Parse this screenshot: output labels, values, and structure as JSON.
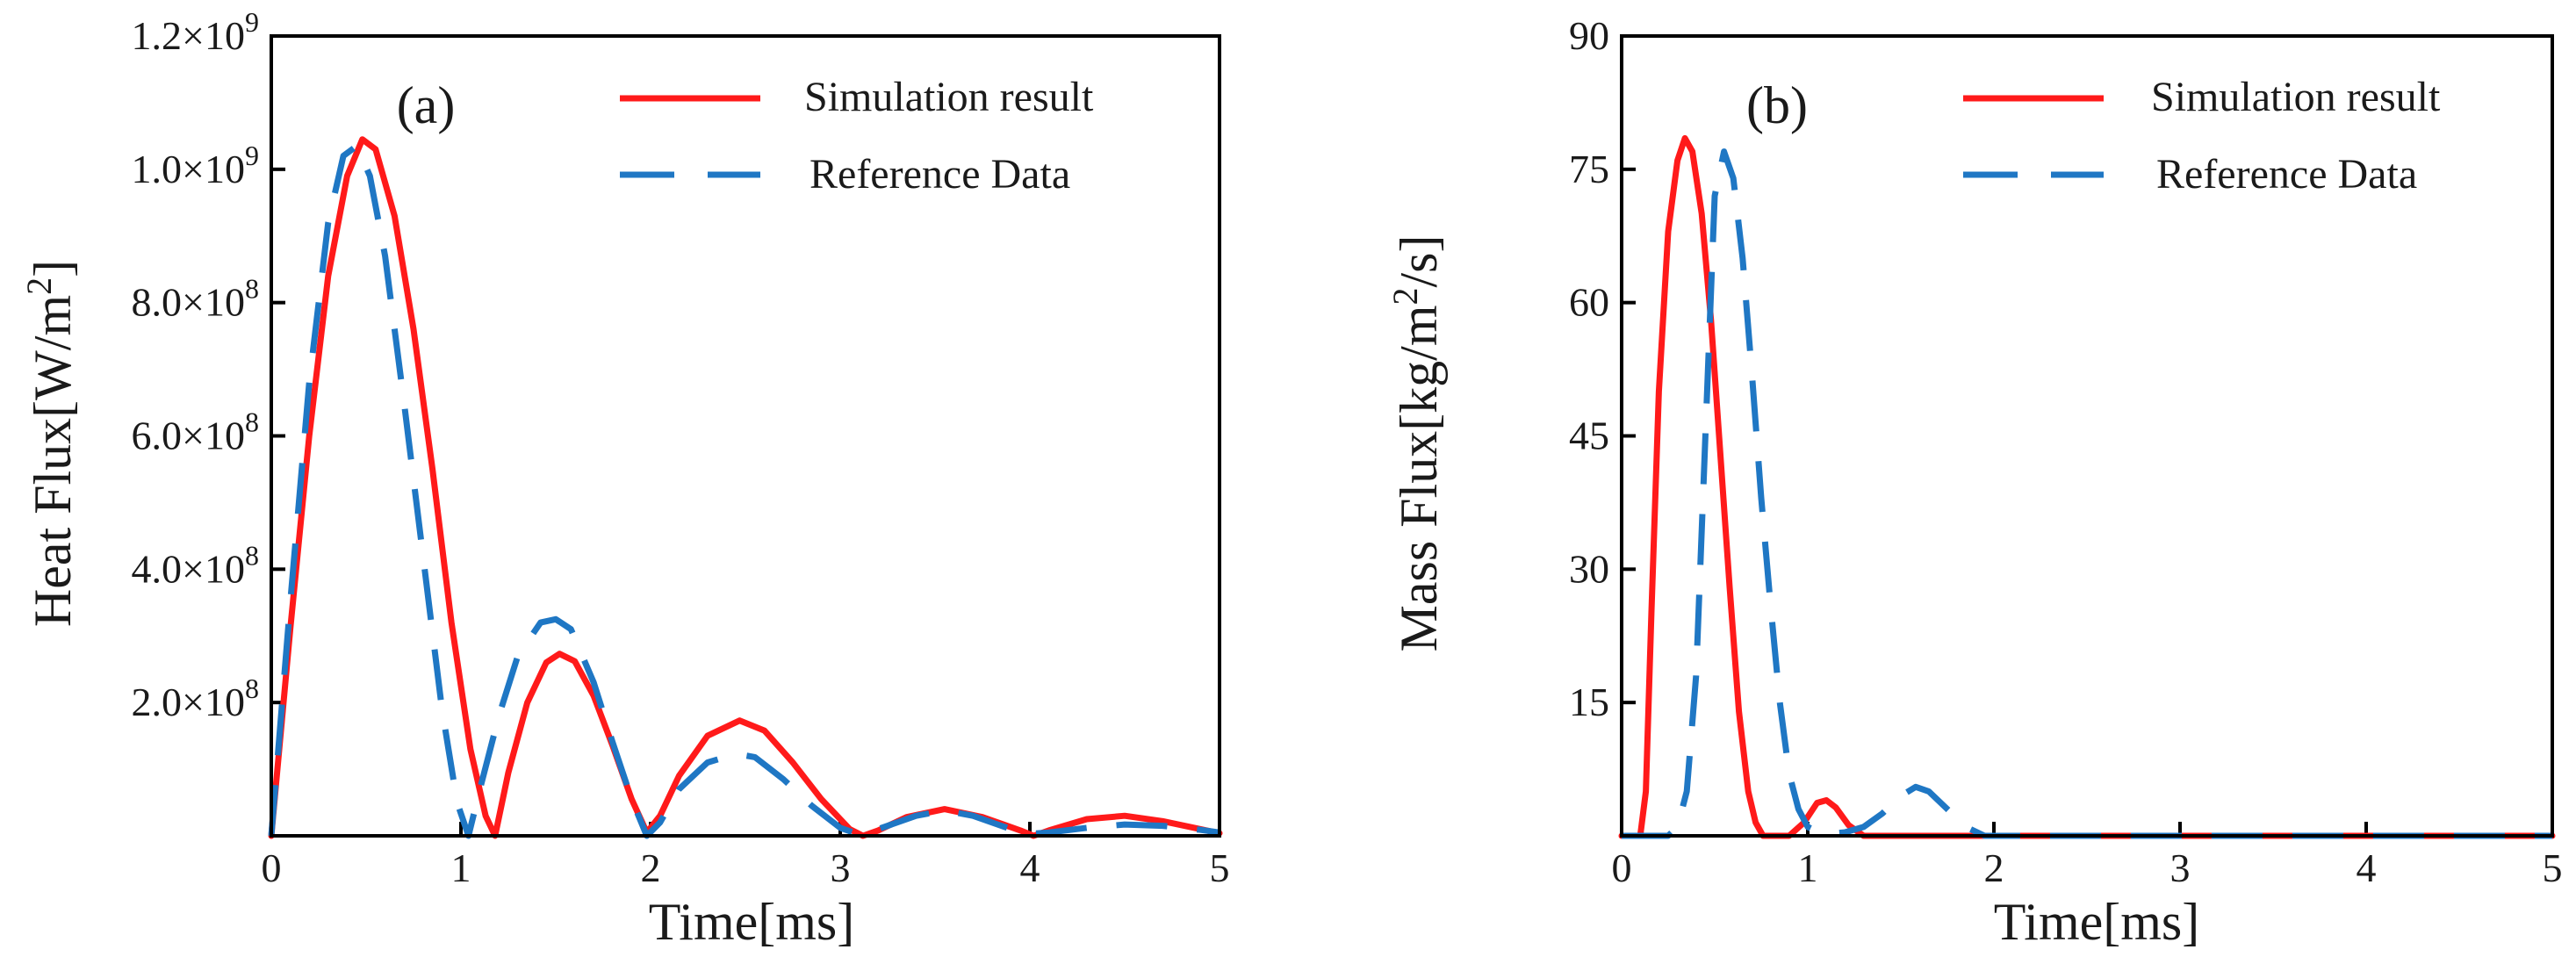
{
  "colors": {
    "simulation": "#ff1a1a",
    "reference": "#1f77c4",
    "axis": "#000000"
  },
  "chart_data": [
    {
      "type": "line",
      "panel_label": "(a)",
      "xlabel": "Time[ms]",
      "ylabel_main": "Heat Flux[W/m",
      "ylabel_sup": "2",
      "ylabel_end": "]",
      "xlim": [
        0,
        5
      ],
      "ylim": [
        0,
        1200000000
      ],
      "xticks": [
        {
          "label": "0",
          "value": 0
        },
        {
          "label": "1",
          "value": 1
        },
        {
          "label": "2",
          "value": 2
        },
        {
          "label": "3",
          "value": 3
        },
        {
          "label": "4",
          "value": 4
        },
        {
          "label": "5",
          "value": 5
        }
      ],
      "yticks": [
        {
          "base": "2.0×10",
          "exp": "8",
          "value": 200000000
        },
        {
          "base": "4.0×10",
          "exp": "8",
          "value": 400000000
        },
        {
          "base": "6.0×10",
          "exp": "8",
          "value": 600000000
        },
        {
          "base": "8.0×10",
          "exp": "8",
          "value": 800000000
        },
        {
          "base": "1.0×10",
          "exp": "9",
          "value": 1000000000
        },
        {
          "base": "1.2×10",
          "exp": "9",
          "value": 1200000000
        }
      ],
      "legend": {
        "position": "top-right",
        "entries": [
          {
            "label": "Simulation result",
            "style": "solid",
            "series": "simulation"
          },
          {
            "label": "Reference Data",
            "style": "dashed",
            "series": "reference"
          }
        ]
      },
      "series": [
        {
          "name": "Simulation result",
          "key": "simulation",
          "x": [
            0,
            0.1,
            0.2,
            0.3,
            0.4,
            0.48,
            0.55,
            0.65,
            0.75,
            0.85,
            0.95,
            1.05,
            1.13,
            1.18,
            1.25,
            1.35,
            1.45,
            1.52,
            1.6,
            1.7,
            1.8,
            1.9,
            1.98,
            2.05,
            2.15,
            2.3,
            2.47,
            2.6,
            2.75,
            2.9,
            3.05,
            3.12,
            3.2,
            3.35,
            3.55,
            3.75,
            3.95,
            4.02,
            4.1,
            4.3,
            4.5,
            4.7,
            4.9,
            5.0
          ],
          "y": [
            0,
            310000000,
            600000000,
            840000000,
            990000000,
            1045000000,
            1030000000,
            930000000,
            760000000,
            550000000,
            320000000,
            130000000,
            30000000,
            0,
            95000000,
            200000000,
            260000000,
            273000000,
            262000000,
            210000000,
            135000000,
            55000000,
            5000000,
            30000000,
            90000000,
            150000000,
            173000000,
            158000000,
            110000000,
            55000000,
            10000000,
            0,
            8000000,
            28000000,
            40000000,
            28000000,
            8000000,
            0,
            8000000,
            25000000,
            30000000,
            22000000,
            10000000,
            4000000
          ]
        },
        {
          "name": "Reference Data",
          "key": "reference",
          "x": [
            0,
            0.1,
            0.2,
            0.3,
            0.38,
            0.45,
            0.52,
            0.6,
            0.7,
            0.8,
            0.9,
            0.98,
            1.04,
            1.1,
            1.2,
            1.3,
            1.42,
            1.5,
            1.58,
            1.7,
            1.8,
            1.9,
            1.98,
            2.05,
            2.15,
            2.3,
            2.45,
            2.55,
            2.7,
            2.85,
            3.0,
            3.1,
            3.2,
            3.4,
            3.55,
            3.7,
            3.9,
            4.0,
            4.1,
            4.3,
            4.5,
            4.7,
            4.9,
            5.0
          ],
          "y": [
            0,
            350000000,
            680000000,
            920000000,
            1020000000,
            1035000000,
            990000000,
            870000000,
            650000000,
            420000000,
            190000000,
            50000000,
            0,
            70000000,
            180000000,
            270000000,
            320000000,
            325000000,
            310000000,
            230000000,
            140000000,
            55000000,
            0,
            20000000,
            70000000,
            110000000,
            123000000,
            118000000,
            85000000,
            45000000,
            12000000,
            2000000,
            10000000,
            30000000,
            38000000,
            30000000,
            10000000,
            3000000,
            5000000,
            12000000,
            17000000,
            15000000,
            9000000,
            5000000
          ]
        }
      ]
    },
    {
      "type": "line",
      "panel_label": "(b)",
      "xlabel": "Time[ms]",
      "ylabel_main": "Mass Flux[kg/m",
      "ylabel_sup": "2",
      "ylabel_end": "/s]",
      "xlim": [
        0,
        5
      ],
      "ylim": [
        0,
        90
      ],
      "xticks": [
        {
          "label": "0",
          "value": 0
        },
        {
          "label": "1",
          "value": 1
        },
        {
          "label": "2",
          "value": 2
        },
        {
          "label": "3",
          "value": 3
        },
        {
          "label": "4",
          "value": 4
        },
        {
          "label": "5",
          "value": 5
        }
      ],
      "yticks": [
        {
          "label": "15",
          "value": 15
        },
        {
          "label": "30",
          "value": 30
        },
        {
          "label": "45",
          "value": 45
        },
        {
          "label": "60",
          "value": 60
        },
        {
          "label": "75",
          "value": 75
        },
        {
          "label": "90",
          "value": 90
        }
      ],
      "legend": {
        "position": "top-right",
        "entries": [
          {
            "label": "Simulation result",
            "style": "solid",
            "series": "simulation"
          },
          {
            "label": "Reference Data",
            "style": "dashed",
            "series": "reference"
          }
        ]
      },
      "series": [
        {
          "name": "Simulation result",
          "key": "simulation",
          "x": [
            0,
            0.1,
            0.13,
            0.16,
            0.2,
            0.25,
            0.3,
            0.34,
            0.38,
            0.43,
            0.48,
            0.53,
            0.58,
            0.63,
            0.68,
            0.72,
            0.76,
            0.82,
            0.9,
            0.98,
            1.05,
            1.1,
            1.15,
            1.22,
            1.3,
            1.5,
            2.0,
            3.0,
            4.0,
            5.0
          ],
          "y": [
            0,
            0,
            5,
            25,
            50,
            68,
            76,
            78.5,
            77,
            70,
            58,
            43,
            28,
            14,
            5,
            1.5,
            0,
            0,
            0,
            1.5,
            3.7,
            4,
            3.2,
            1.2,
            0,
            0,
            0,
            0,
            0,
            0
          ]
        },
        {
          "name": "Reference Data",
          "key": "reference",
          "x": [
            0,
            0.25,
            0.3,
            0.35,
            0.4,
            0.45,
            0.5,
            0.55,
            0.6,
            0.65,
            0.7,
            0.75,
            0.8,
            0.85,
            0.9,
            0.95,
            1.0,
            1.05,
            1.1,
            1.2,
            1.3,
            1.4,
            1.5,
            1.58,
            1.65,
            1.75,
            1.85,
            1.95,
            2.0,
            3.0,
            4.0,
            5.0
          ],
          "y": [
            0,
            0,
            1,
            5,
            18,
            45,
            72,
            77,
            74,
            65,
            52,
            38,
            26,
            15,
            7,
            3,
            1,
            0.5,
            0.2,
            0.4,
            1,
            2.5,
            4.5,
            5.5,
            5,
            3,
            1,
            0,
            0,
            0,
            0,
            0
          ]
        }
      ]
    }
  ]
}
